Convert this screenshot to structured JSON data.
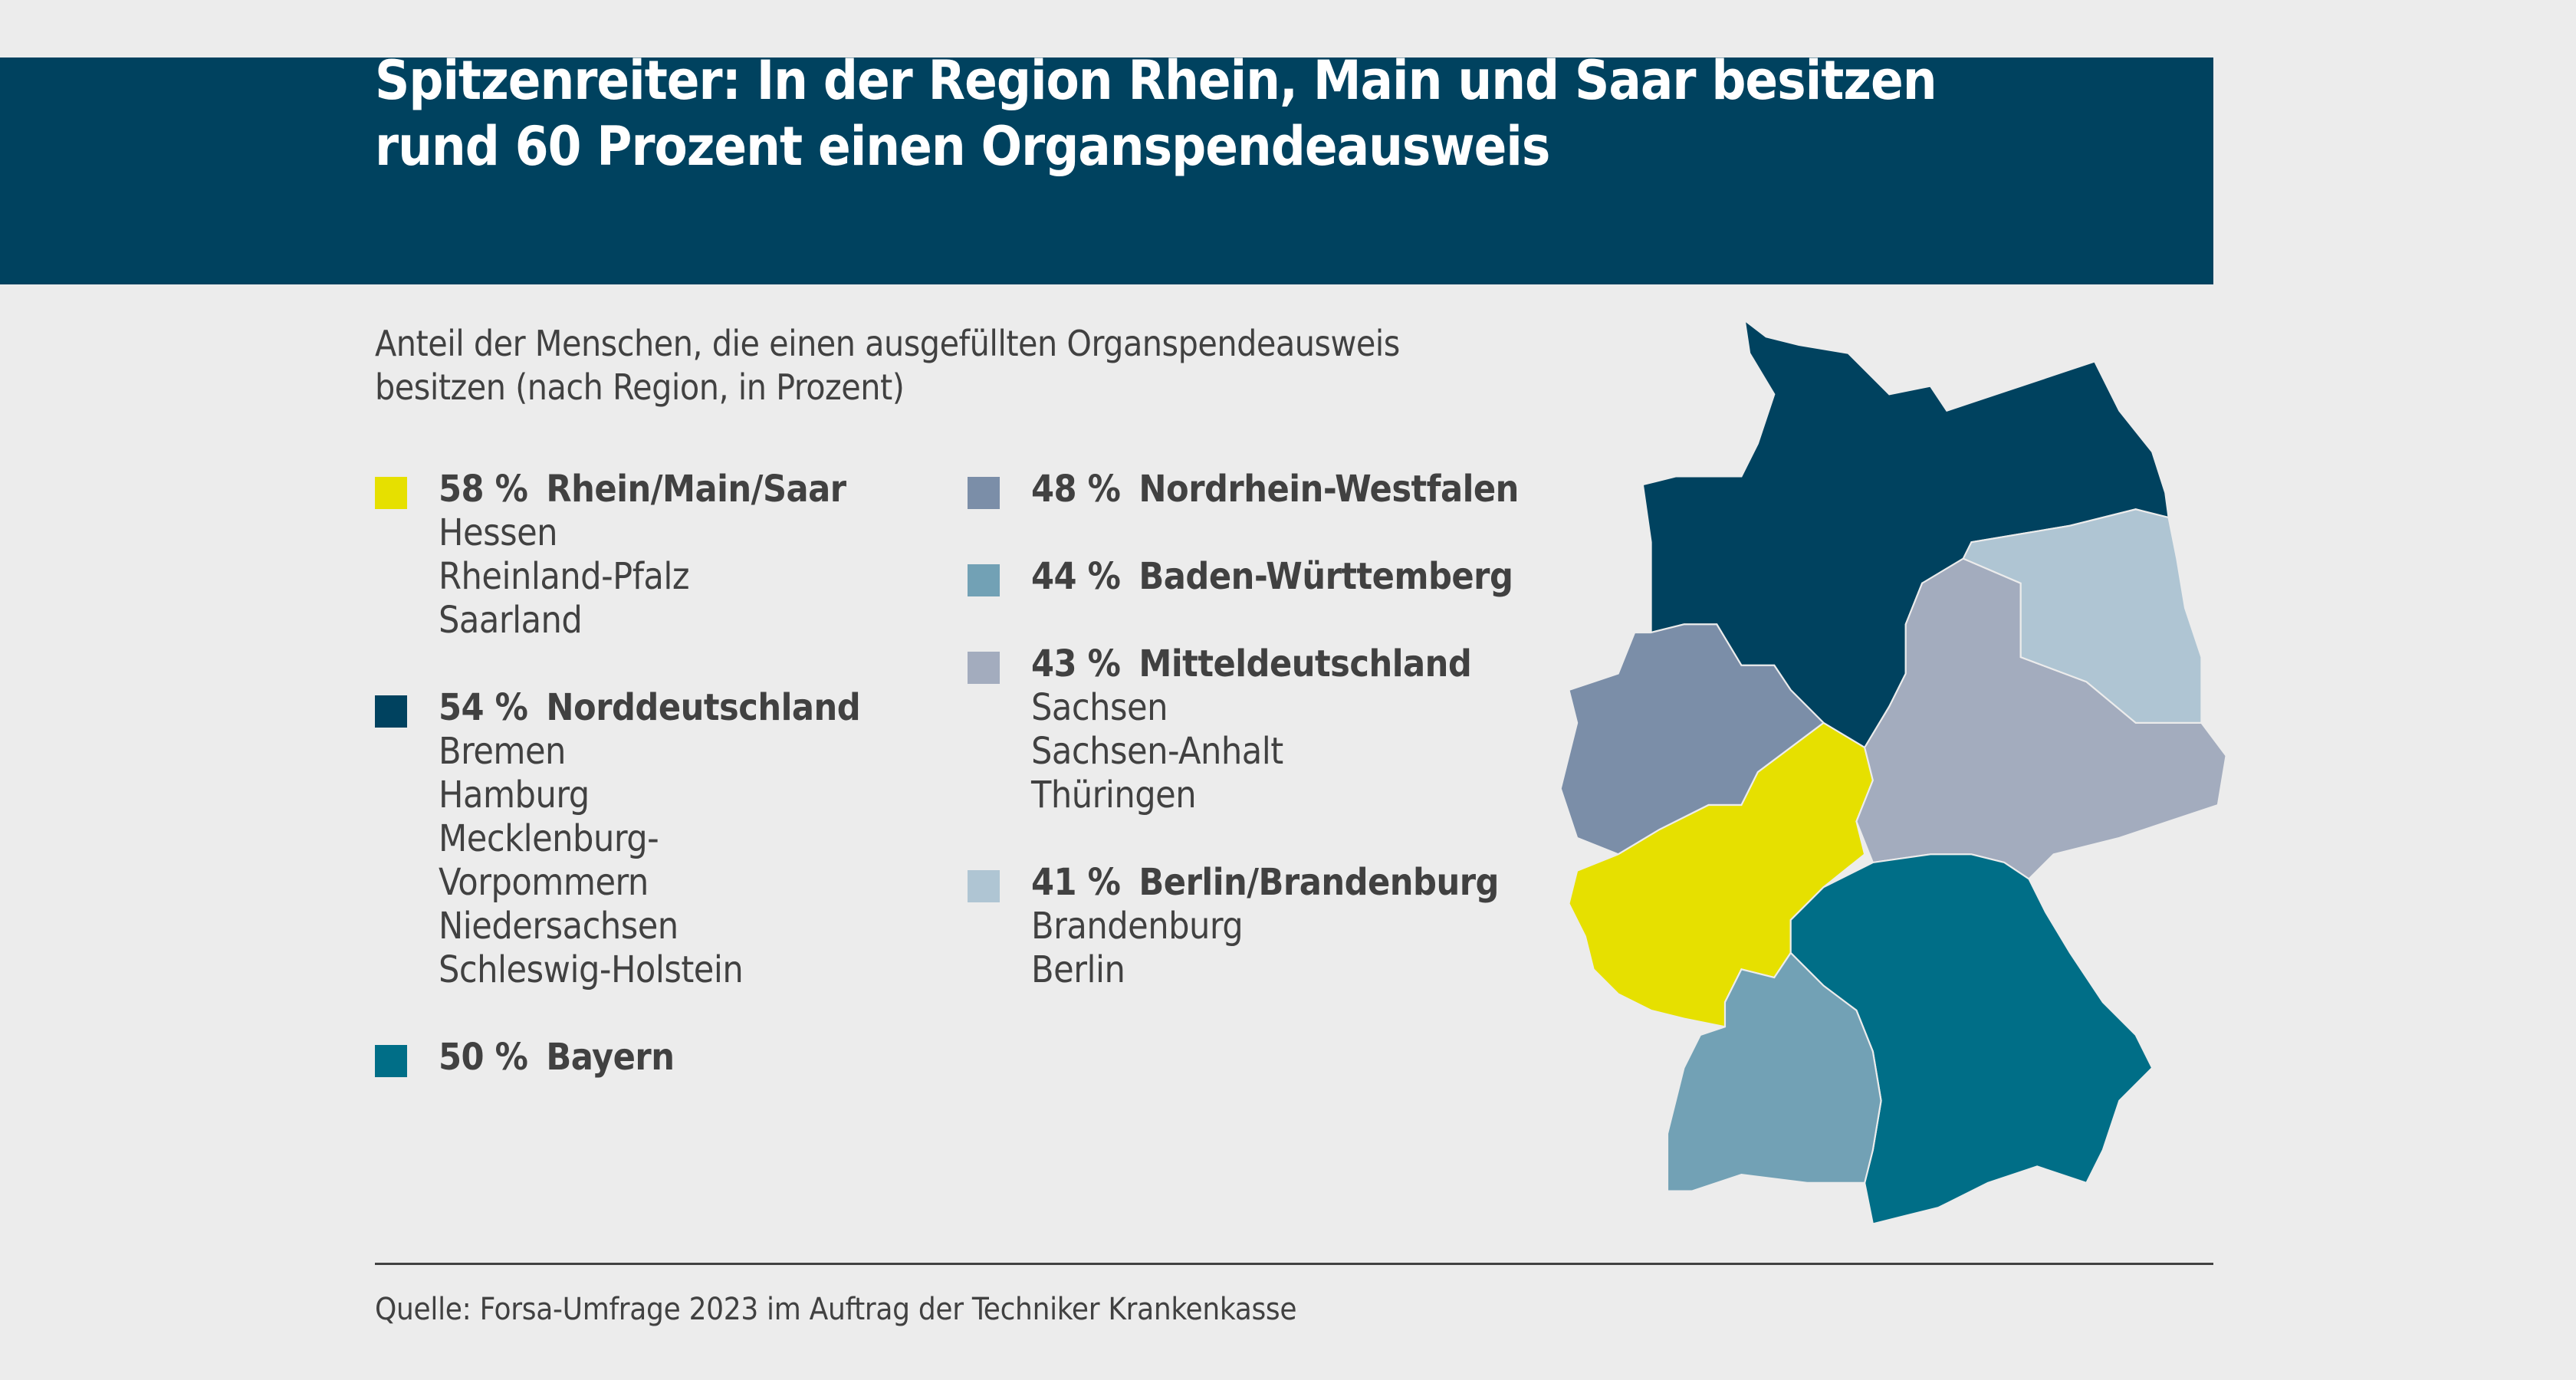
{
  "header": {
    "title_line1": "Spitzenreiter: In der Region Rhein, Main und Saar besitzen",
    "title_line2": "rund 60 Prozent einen Organspendeausweis"
  },
  "subtitle": {
    "line1": "Anteil der Menschen, die einen ausgefüllten Organspendeausweis",
    "line2": "besitzen (nach Region, in Prozent)"
  },
  "regions": [
    {
      "percent": "58 %",
      "name": "Rhein/Main/Saar",
      "color": "#e6e000",
      "states": [
        "Hessen",
        "Rheinland-Pfalz",
        "Saarland"
      ]
    },
    {
      "percent": "54 %",
      "name": "Norddeutschland",
      "color": "#00425f",
      "states": [
        "Bremen",
        "Hamburg",
        "Mecklenburg-",
        "Vorpommern",
        "Niedersachsen",
        "Schleswig-Holstein"
      ]
    },
    {
      "percent": "50 %",
      "name": "Bayern",
      "color": "#006e87",
      "states": []
    },
    {
      "percent": "48 %",
      "name": "Nordrhein-Westfalen",
      "color": "#7b8ea8",
      "states": []
    },
    {
      "percent": "44 %",
      "name": "Baden-Württemberg",
      "color": "#72a1b5",
      "states": []
    },
    {
      "percent": "43 %",
      "name": "Mitteldeutschland",
      "color": "#a3acbe",
      "states": [
        "Sachsen",
        "Sachsen-Anhalt",
        "Thüringen"
      ]
    },
    {
      "percent": "41 %",
      "name": "Berlin/Brandenburg",
      "color": "#afc5d3",
      "states": [
        "Brandenburg",
        "Berlin"
      ]
    }
  ],
  "source": "Quelle: Forsa-Umfrage 2023 im Auftrag der Techniker Krankenkasse"
}
